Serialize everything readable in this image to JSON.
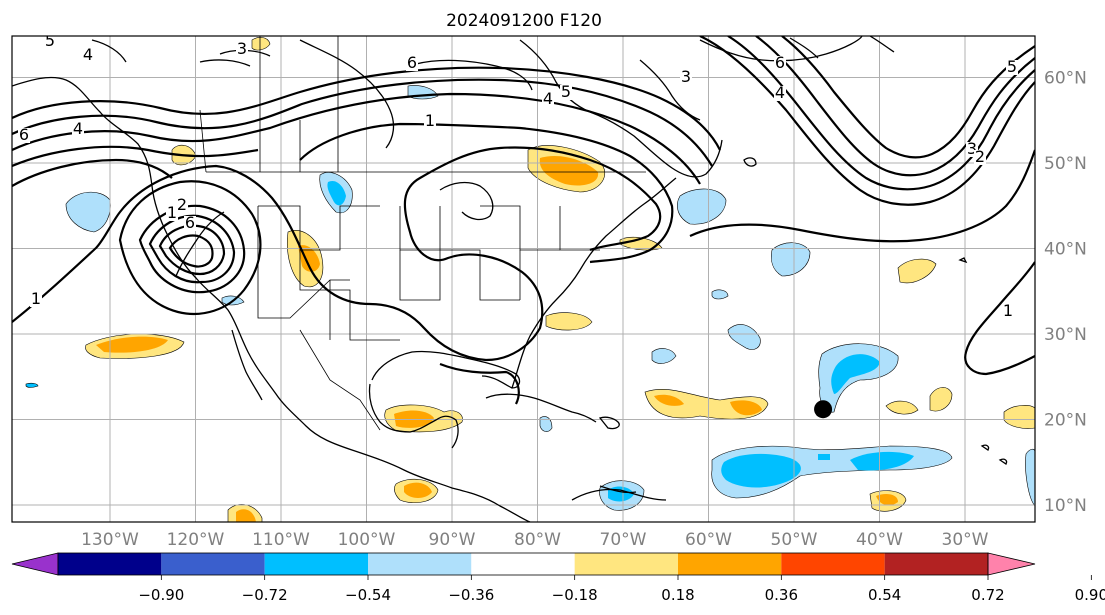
{
  "title": "2024091200 F120",
  "lon_labels": [
    "130°W",
    "120°W",
    "110°W",
    "100°W",
    "90°W",
    "80°W",
    "70°W",
    "60°W",
    "50°W",
    "40°W",
    "30°W"
  ],
  "lat_labels": [
    "60°N",
    "50°N",
    "40°N",
    "30°N",
    "20°N",
    "10°N"
  ],
  "colorbar": {
    "ticks": [
      "−0.90",
      "−0.72",
      "−0.54",
      "−0.36",
      "−0.18",
      "0.18",
      "0.36",
      "0.54",
      "0.72",
      "0.90"
    ],
    "colors": [
      "#9932cc",
      "#00008b",
      "#3a5fcd",
      "#00bfff",
      "#afe0fb",
      "#ffffff",
      "#ffe680",
      "#ffa500",
      "#ff4500",
      "#b22222",
      "#ff82ab"
    ],
    "extend": "both"
  },
  "contour_labels": [
    {
      "id": "c1",
      "text": "5"
    },
    {
      "id": "c2",
      "text": "4"
    },
    {
      "id": "c3",
      "text": "3"
    },
    {
      "id": "c4",
      "text": "6"
    },
    {
      "id": "c5",
      "text": "4"
    },
    {
      "id": "c6",
      "text": "5"
    },
    {
      "id": "c7",
      "text": "3"
    },
    {
      "id": "c8",
      "text": "1"
    },
    {
      "id": "c9",
      "text": "6"
    },
    {
      "id": "c10",
      "text": "4"
    },
    {
      "id": "c11",
      "text": "5"
    },
    {
      "id": "c12",
      "text": "3"
    },
    {
      "id": "c13",
      "text": "2"
    },
    {
      "id": "c14",
      "text": "1"
    },
    {
      "id": "c15",
      "text": "6"
    },
    {
      "id": "c16",
      "text": "4"
    },
    {
      "id": "c17",
      "text": "2"
    },
    {
      "id": "c18",
      "text": "6"
    },
    {
      "id": "c19",
      "text": "1"
    },
    {
      "id": "c20",
      "text": "1"
    }
  ],
  "marker": {
    "name": "storm-position",
    "lon": -46.6,
    "lat": 21.2
  },
  "colors": {
    "contour": "#000000",
    "grid": "#b0b0b0",
    "axis_text": "#808080"
  }
}
